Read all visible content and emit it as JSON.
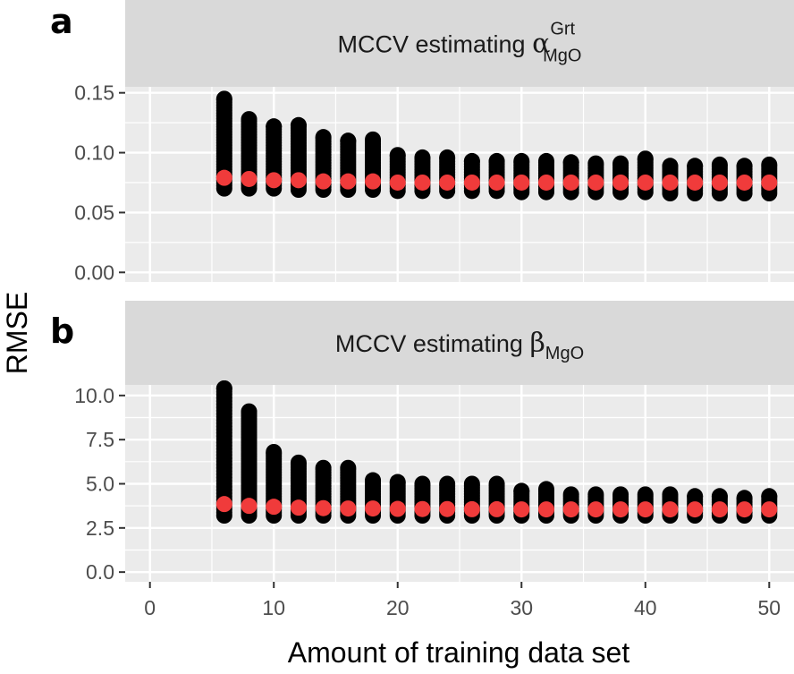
{
  "chart_data": [
    {
      "type": "scatter",
      "panel_tag": "a",
      "strip": {
        "prefix": "MCCV estimating",
        "symbol": "α",
        "superscript": "Grt",
        "subscript": "MgO"
      },
      "xlabel": "Amount of training data set",
      "ylabel": "RMSE",
      "xlim": [
        -2,
        52
      ],
      "ylim": [
        -0.008,
        0.155
      ],
      "x_ticks": [
        0,
        10,
        20,
        30,
        40,
        50
      ],
      "y_ticks": [
        0.0,
        0.05,
        0.1,
        0.15
      ],
      "y_tick_labels": [
        "0.00",
        "0.05",
        "0.10",
        "0.15"
      ],
      "grid": true,
      "series": [
        {
          "kind": "mccv-replicates",
          "color": "#000000",
          "x": [
            6,
            8,
            10,
            12,
            14,
            16,
            18,
            20,
            22,
            24,
            26,
            28,
            30,
            32,
            34,
            36,
            38,
            40,
            42,
            44,
            46,
            48,
            50
          ],
          "min": [
            0.07,
            0.07,
            0.07,
            0.069,
            0.069,
            0.069,
            0.069,
            0.068,
            0.068,
            0.068,
            0.068,
            0.068,
            0.067,
            0.067,
            0.067,
            0.067,
            0.067,
            0.067,
            0.066,
            0.066,
            0.066,
            0.066,
            0.066
          ],
          "max": [
            0.145,
            0.128,
            0.122,
            0.123,
            0.113,
            0.11,
            0.111,
            0.098,
            0.096,
            0.096,
            0.093,
            0.093,
            0.093,
            0.093,
            0.092,
            0.091,
            0.091,
            0.095,
            0.089,
            0.089,
            0.09,
            0.089,
            0.09
          ]
        },
        {
          "kind": "mean",
          "color": "#f03b3b",
          "x": [
            6,
            8,
            10,
            12,
            14,
            16,
            18,
            20,
            22,
            24,
            26,
            28,
            30,
            32,
            34,
            36,
            38,
            40,
            42,
            44,
            46,
            48,
            50
          ],
          "values": [
            0.079,
            0.078,
            0.077,
            0.077,
            0.076,
            0.076,
            0.076,
            0.075,
            0.075,
            0.075,
            0.075,
            0.075,
            0.075,
            0.075,
            0.075,
            0.075,
            0.075,
            0.075,
            0.075,
            0.075,
            0.075,
            0.075,
            0.075
          ]
        }
      ]
    },
    {
      "type": "scatter",
      "panel_tag": "b",
      "strip": {
        "prefix": "MCCV estimating",
        "symbol": "β",
        "superscript": "",
        "subscript": "MgO"
      },
      "xlabel": "Amount of training data set",
      "ylabel": "RMSE",
      "xlim": [
        -2,
        52
      ],
      "ylim": [
        -0.55,
        10.6
      ],
      "x_ticks": [
        0,
        10,
        20,
        30,
        40,
        50
      ],
      "y_ticks": [
        0.0,
        2.5,
        5.0,
        7.5,
        10.0
      ],
      "y_tick_labels": [
        "0.0",
        "2.5",
        "5.0",
        "7.5",
        "10.0"
      ],
      "grid": true,
      "series": [
        {
          "kind": "mccv-replicates",
          "color": "#000000",
          "x": [
            6,
            8,
            10,
            12,
            14,
            16,
            18,
            20,
            22,
            24,
            26,
            28,
            30,
            32,
            34,
            36,
            38,
            40,
            42,
            44,
            46,
            48,
            50
          ],
          "min": [
            3.2,
            3.2,
            3.2,
            3.2,
            3.2,
            3.2,
            3.2,
            3.2,
            3.2,
            3.2,
            3.2,
            3.2,
            3.2,
            3.2,
            3.2,
            3.2,
            3.2,
            3.2,
            3.2,
            3.2,
            3.2,
            3.2,
            3.2
          ],
          "max": [
            10.4,
            9.1,
            6.8,
            6.2,
            5.9,
            5.9,
            5.2,
            5.1,
            5.0,
            5.0,
            5.0,
            5.0,
            4.6,
            4.7,
            4.4,
            4.4,
            4.4,
            4.4,
            4.4,
            4.3,
            4.3,
            4.2,
            4.3
          ]
        },
        {
          "kind": "mean",
          "color": "#f03b3b",
          "x": [
            6,
            8,
            10,
            12,
            14,
            16,
            18,
            20,
            22,
            24,
            26,
            28,
            30,
            32,
            34,
            36,
            38,
            40,
            42,
            44,
            46,
            48,
            50
          ],
          "values": [
            3.85,
            3.75,
            3.7,
            3.65,
            3.62,
            3.6,
            3.6,
            3.58,
            3.57,
            3.57,
            3.56,
            3.56,
            3.55,
            3.55,
            3.55,
            3.55,
            3.55,
            3.55,
            3.55,
            3.55,
            3.55,
            3.55,
            3.55
          ]
        }
      ]
    }
  ],
  "colors": {
    "panel_background": "#ebebeb",
    "strip_background": "#d9d9d9",
    "grid": "#ffffff",
    "tick": "#333333",
    "replicate": "#000000",
    "mean": "#f03b3b"
  }
}
